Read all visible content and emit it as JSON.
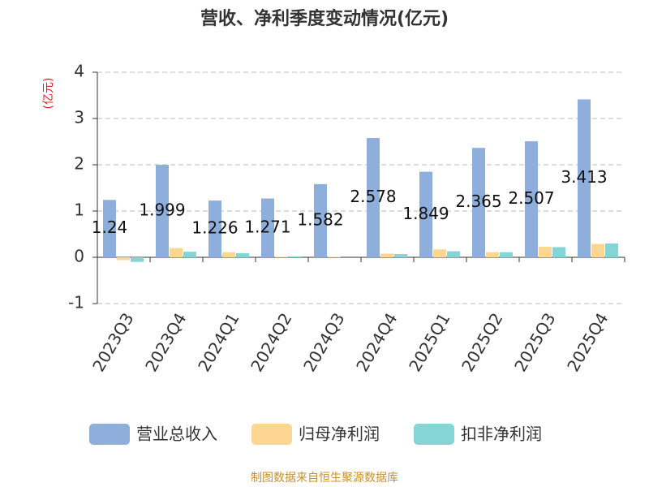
{
  "chart_data": {
    "type": "bar",
    "title": "营收、净利季度变动情况(亿元)",
    "y_label": "(亿元)",
    "categories": [
      "2023Q3",
      "2023Q4",
      "2024Q1",
      "2024Q2",
      "2024Q3",
      "2024Q4",
      "2025Q1",
      "2025Q2",
      "2025Q3",
      "2025Q4"
    ],
    "series": [
      {
        "name": "营业总收入",
        "color": "#8eaedc",
        "values": [
          1.24,
          1.999,
          1.226,
          1.271,
          1.582,
          2.578,
          1.849,
          2.365,
          2.507,
          3.413
        ],
        "data_labels": true
      },
      {
        "name": "归母净利润",
        "color": "#fdd692",
        "values": [
          -0.06,
          0.2,
          0.11,
          0.01,
          0.01,
          0.08,
          0.17,
          0.11,
          0.23,
          0.29
        ],
        "data_labels": false
      },
      {
        "name": "扣非净利润",
        "color": "#85d4d6",
        "values": [
          -0.1,
          0.12,
          0.09,
          0.02,
          0.0,
          0.07,
          0.13,
          0.11,
          0.22,
          0.3
        ],
        "data_labels": false
      }
    ],
    "ylim": [
      -1,
      4
    ],
    "yticks": [
      -1,
      0,
      1,
      2,
      3,
      4
    ],
    "grid": true,
    "source": "制图数据来自恒生聚源数据库"
  }
}
